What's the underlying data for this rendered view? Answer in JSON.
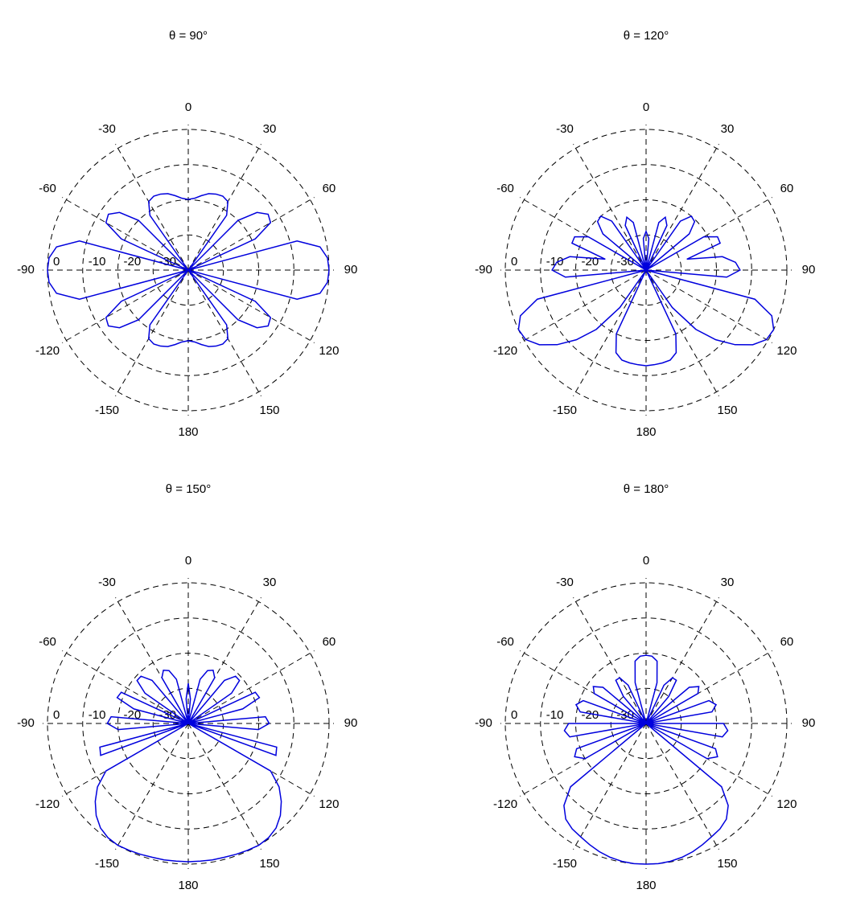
{
  "chart_data": [
    {
      "type": "polar",
      "title": "θ = 90°",
      "color": "#0000dd",
      "rlim": [
        -40,
        0
      ],
      "rticks": [
        0,
        -10,
        -20,
        -30
      ],
      "thetaticks": [
        0,
        30,
        60,
        90,
        120,
        150,
        180,
        -150,
        -120,
        -90,
        -60,
        -30
      ],
      "theta_zero_location": "N",
      "theta_direction": "clockwise",
      "grid": true,
      "x": [
        0,
        5,
        10,
        15,
        20,
        25,
        30,
        35,
        40,
        45,
        50,
        55,
        60,
        65,
        70,
        75,
        80,
        85,
        90,
        95,
        100,
        105,
        110,
        115,
        120,
        125,
        130,
        135,
        140,
        145,
        150,
        155,
        160,
        165,
        170,
        175,
        180,
        185,
        190,
        195,
        200,
        205,
        210,
        215,
        220,
        225,
        230,
        235,
        240,
        245,
        250,
        255,
        260,
        265,
        270,
        275,
        280,
        285,
        290,
        295,
        300,
        305,
        310,
        315,
        320,
        325,
        330,
        335,
        340,
        345,
        350,
        355
      ],
      "values": [
        -19.9,
        -19.5,
        -18.5,
        -17.5,
        -17,
        -16.8,
        -17.5,
        -21,
        -40,
        -20,
        -14.5,
        -12.3,
        -13,
        -19,
        -40,
        -8,
        -2,
        -0.3,
        0,
        -0.3,
        -2,
        -8,
        -40,
        -19,
        -13,
        -12.3,
        -14.5,
        -20,
        -40,
        -21,
        -17.5,
        -16.8,
        -17,
        -17.5,
        -18.5,
        -19.5,
        -19.9,
        -19.5,
        -18.5,
        -17.5,
        -17,
        -16.8,
        -17.5,
        -21,
        -40,
        -20,
        -14.5,
        -12.3,
        -13,
        -19,
        -40,
        -8,
        -2,
        -0.3,
        0,
        -0.3,
        -2,
        -8,
        -40,
        -19,
        -13,
        -12.3,
        -14.5,
        -20,
        -40,
        -21,
        -17.5,
        -16.8,
        -17,
        -17.5,
        -18.5,
        -19.5
      ]
    },
    {
      "type": "polar",
      "title": "θ = 120°",
      "color": "#0000dd",
      "rlim": [
        -40,
        0
      ],
      "rticks": [
        0,
        -10,
        -20,
        -30
      ],
      "thetaticks": [
        0,
        30,
        60,
        90,
        120,
        150,
        180,
        -150,
        -120,
        -90,
        -60,
        -30
      ],
      "theta_zero_location": "N",
      "theta_direction": "clockwise",
      "grid": true,
      "x": [
        0,
        5,
        10,
        15,
        20,
        25,
        30,
        35,
        40,
        45,
        50,
        55,
        60,
        65,
        70,
        75,
        80,
        85,
        90,
        95,
        100,
        105,
        110,
        115,
        120,
        125,
        130,
        135,
        140,
        145,
        150,
        155,
        160,
        165,
        170,
        175,
        180,
        185,
        190,
        195,
        200,
        205,
        210,
        215,
        220,
        225,
        230,
        235,
        240,
        245,
        250,
        255,
        260,
        265,
        270,
        275,
        280,
        285,
        290,
        295,
        300,
        305,
        310,
        315,
        320,
        325,
        330,
        335,
        340,
        345,
        350,
        355
      ],
      "values": [
        -29,
        -31,
        -40,
        -26,
        -24,
        -26,
        -40,
        -23,
        -20,
        -20.5,
        -24,
        -40,
        -21,
        -17.6,
        -17.6,
        -28,
        -18,
        -14.5,
        -13.3,
        -17,
        -40,
        -8,
        -2,
        0,
        -0.5,
        -3,
        -7,
        -12,
        -18,
        -27,
        -40,
        -20,
        -15,
        -13.5,
        -13.2,
        -13,
        -12.8,
        -13,
        -13.2,
        -13.5,
        -15,
        -20,
        -40,
        -27,
        -18,
        -12,
        -7,
        -3,
        -0.5,
        0,
        -2,
        -8,
        -40,
        -17,
        -13.3,
        -14.5,
        -18,
        -28,
        -17.6,
        -17.6,
        -21,
        -40,
        -24,
        -20.5,
        -20,
        -23,
        -40,
        -26,
        -24,
        -26,
        -40,
        -31
      ]
    },
    {
      "type": "polar",
      "title": "θ = 150°",
      "color": "#0000dd",
      "rlim": [
        -40,
        0
      ],
      "rticks": [
        0,
        -10,
        -20,
        -30
      ],
      "thetaticks": [
        0,
        30,
        60,
        90,
        120,
        150,
        180,
        -150,
        -120,
        -90,
        -60,
        -30
      ],
      "theta_zero_location": "N",
      "theta_direction": "clockwise",
      "grid": true,
      "x": [
        0,
        5,
        10,
        15,
        20,
        25,
        30,
        35,
        40,
        45,
        50,
        55,
        60,
        65,
        70,
        75,
        80,
        85,
        90,
        95,
        100,
        105,
        110,
        115,
        120,
        125,
        130,
        135,
        140,
        145,
        150,
        155,
        160,
        165,
        170,
        175,
        180,
        185,
        190,
        195,
        200,
        205,
        210,
        215,
        220,
        225,
        230,
        235,
        240,
        245,
        250,
        255,
        260,
        265,
        270,
        275,
        280,
        285,
        290,
        295,
        300,
        305,
        310,
        315,
        320,
        325,
        330,
        335,
        340,
        345,
        350,
        355
      ],
      "values": [
        -28.6,
        -33,
        -40,
        -27,
        -24,
        -23.3,
        -25,
        -40,
        -24,
        -21,
        -21,
        -25,
        -40,
        -19,
        -18.5,
        -24,
        -40,
        -18,
        -17,
        -20,
        -40,
        -14,
        -13.5,
        -40,
        -13,
        -8.5,
        -5.5,
        -3,
        -1.2,
        -0.3,
        0,
        -0.2,
        -0.4,
        -0.6,
        -0.6,
        -0.7,
        -0.7,
        -0.7,
        -0.6,
        -0.6,
        -0.4,
        -0.2,
        0,
        -0.3,
        -1.2,
        -3,
        -5.5,
        -8.5,
        -13,
        -40,
        -13.5,
        -14,
        -40,
        -20,
        -17,
        -18,
        -40,
        -24,
        -18.5,
        -19,
        -40,
        -25,
        -21,
        -21,
        -24,
        -40,
        -25,
        -23.3,
        -24,
        -27,
        -40,
        -33
      ]
    },
    {
      "type": "polar",
      "title": "θ = 180°",
      "color": "#0000dd",
      "rlim": [
        -40,
        0
      ],
      "rticks": [
        0,
        -10,
        -20,
        -30
      ],
      "thetaticks": [
        0,
        30,
        60,
        90,
        120,
        150,
        180,
        -150,
        -120,
        -90,
        -60,
        -30
      ],
      "theta_zero_location": "N",
      "theta_direction": "clockwise",
      "grid": true,
      "x": [
        0,
        5,
        10,
        15,
        20,
        25,
        30,
        35,
        40,
        45,
        50,
        55,
        60,
        65,
        70,
        75,
        80,
        85,
        90,
        95,
        100,
        105,
        110,
        115,
        120,
        125,
        130,
        135,
        140,
        145,
        150,
        155,
        160,
        165,
        170,
        175,
        180,
        185,
        190,
        195,
        200,
        205,
        210,
        215,
        220,
        225,
        230,
        235,
        240,
        245,
        250,
        255,
        260,
        265,
        270,
        275,
        280,
        285,
        290,
        295,
        300,
        305,
        310,
        315,
        320,
        325,
        330,
        335,
        340,
        345,
        350,
        355
      ],
      "values": [
        -20.6,
        -20.8,
        -22,
        -28,
        -40,
        -28,
        -25,
        -25,
        -30,
        -40,
        -24,
        -21.7,
        -23,
        -40,
        -21,
        -19.4,
        -21,
        -40,
        -18,
        -16.7,
        -18,
        -40,
        -19,
        -17.6,
        -20,
        -40,
        -12,
        -7,
        -4.5,
        -3.4,
        -2.8,
        -2,
        -1.2,
        -0.6,
        -0.2,
        0,
        0,
        0,
        -0.2,
        -0.6,
        -1.2,
        -2,
        -2.8,
        -3.4,
        -4.5,
        -7,
        -12,
        -40,
        -20,
        -17.6,
        -19,
        -40,
        -18,
        -16.7,
        -18,
        -40,
        -21,
        -19.4,
        -21,
        -40,
        -23,
        -21.7,
        -24,
        -40,
        -30,
        -25,
        -25,
        -28,
        -40,
        -28,
        -22,
        -20.8
      ]
    }
  ]
}
